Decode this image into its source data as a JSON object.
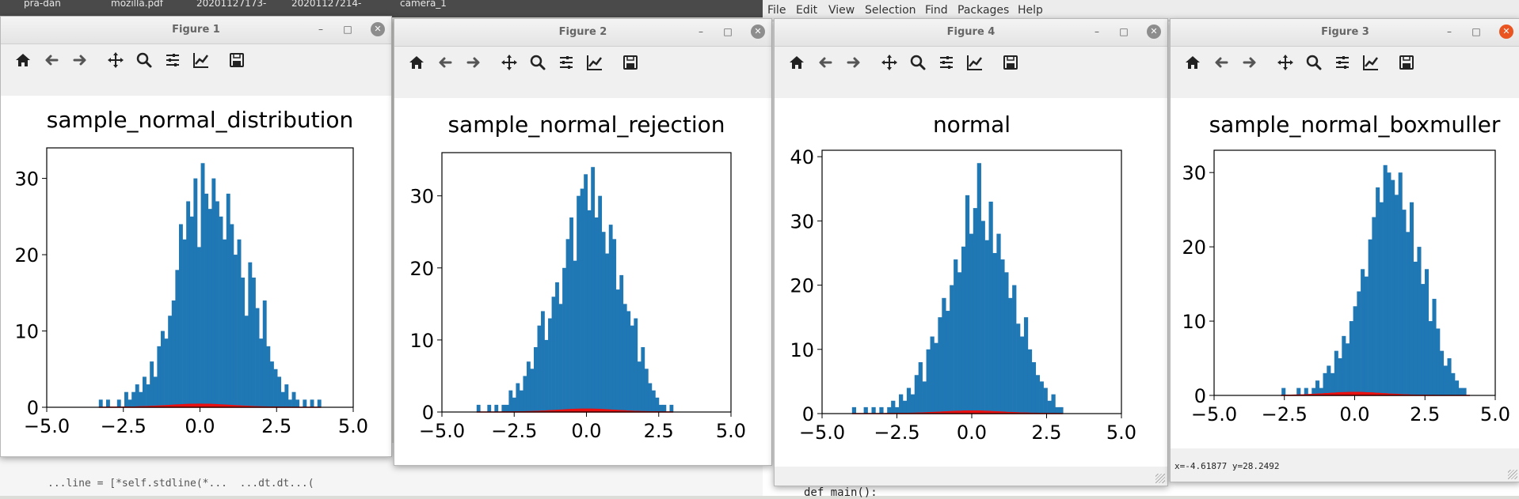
{
  "desktop": {
    "icons": [
      "pra-dan",
      "mozilla.pdf",
      "20201127173-",
      "20201127214-",
      "camera_1"
    ]
  },
  "editor": {
    "menu": [
      "File",
      "Edit",
      "View",
      "Selection",
      "Find",
      "Packages",
      "Help"
    ],
    "code_bottom": "def main():"
  },
  "terminal": {
    "text": "...line = [*self.stdline(*...  ...dt.dt...("
  },
  "colors": {
    "histogram": "#1f77b4",
    "pdf_fill": "#e81010",
    "close_active": "#e95420"
  },
  "toolbar_icons": [
    "home-icon",
    "back-arrow-icon",
    "forward-arrow-icon",
    "pan-icon",
    "zoom-icon",
    "subplots-icon",
    "edit-axis-icon",
    "save-icon"
  ],
  "windows": [
    {
      "id": "figure-1",
      "title": "Figure 1",
      "status": "",
      "chart_data": {
        "type": "bar",
        "title": "sample_normal_distribution",
        "xlim": [
          -5.0,
          5.0
        ],
        "ylim": [
          0,
          34
        ],
        "xticks": [
          "−5.0",
          "−2.5",
          "0.0",
          "2.5",
          "5.0"
        ],
        "yticks": [
          "0",
          "10",
          "20",
          "30"
        ],
        "x_range": [
          -3.3,
          3.95
        ],
        "values": [
          1,
          0,
          1,
          0,
          0,
          1,
          0,
          2,
          1,
          2,
          3,
          2,
          4,
          3,
          6,
          4,
          8,
          10,
          9,
          12,
          14,
          18,
          24,
          22,
          27,
          25,
          30,
          21,
          32,
          28,
          26,
          30,
          27,
          25,
          22,
          28,
          24,
          20,
          22,
          17,
          12,
          19,
          17,
          13,
          9,
          14,
          8,
          6,
          5,
          4,
          2,
          3,
          1,
          2,
          1,
          0,
          1,
          0,
          1,
          0,
          1
        ],
        "pdf_peak": 0.4
      }
    },
    {
      "id": "figure-2",
      "title": "Figure 2",
      "status": "",
      "chart_data": {
        "type": "bar",
        "title": "sample_normal_rejection",
        "xlim": [
          -5.0,
          5.0
        ],
        "ylim": [
          0,
          36
        ],
        "xticks": [
          "−5.0",
          "−2.5",
          "0.0",
          "2.5",
          "5.0"
        ],
        "yticks": [
          "0",
          "10",
          "20",
          "30"
        ],
        "x_range": [
          -3.8,
          3.0
        ],
        "values": [
          1,
          0,
          0,
          1,
          0,
          1,
          0,
          1,
          1,
          3,
          2,
          4,
          3,
          5,
          7,
          6,
          9,
          12,
          14,
          10,
          13,
          16,
          18,
          15,
          20,
          24,
          27,
          21,
          30,
          31,
          33,
          28,
          34,
          27,
          30,
          25,
          22,
          26,
          24,
          17,
          19,
          15,
          14,
          12,
          13,
          7,
          9,
          6,
          4,
          3,
          2,
          1,
          1,
          0,
          1
        ],
        "pdf_peak": 0.4
      }
    },
    {
      "id": "figure-4",
      "title": "Figure 4",
      "status": "",
      "chart_data": {
        "type": "bar",
        "title": "normal",
        "xlim": [
          -5.0,
          5.0
        ],
        "ylim": [
          0,
          41
        ],
        "xticks": [
          "−5.0",
          "−2.5",
          "0.0",
          "2.5",
          "5.0"
        ],
        "yticks": [
          "0",
          "10",
          "20",
          "30",
          "40"
        ],
        "x_range": [
          -4.0,
          3.05
        ],
        "values": [
          1,
          0,
          0,
          1,
          0,
          1,
          0,
          1,
          0,
          1,
          2,
          1,
          3,
          2,
          4,
          3,
          6,
          8,
          5,
          10,
          12,
          11,
          15,
          18,
          16,
          20,
          24,
          22,
          26,
          34,
          28,
          32,
          39,
          30,
          27,
          33,
          25,
          28,
          24,
          22,
          18,
          20,
          14,
          12,
          15,
          10,
          8,
          6,
          5,
          4,
          2,
          3,
          1,
          1
        ],
        "pdf_peak": 0.4
      }
    },
    {
      "id": "figure-3",
      "title": "Figure 3",
      "status": "x=-4.61877     y=28.2492",
      "chart_data": {
        "type": "bar",
        "title": "sample_normal_boxmuller",
        "xlim": [
          -5.0,
          5.0
        ],
        "ylim": [
          0,
          33
        ],
        "xticks": [
          "−5.0",
          "−2.5",
          "0.0",
          "2.5",
          "5.0"
        ],
        "yticks": [
          "0",
          "10",
          "20",
          "30"
        ],
        "x_range": [
          -2.6,
          4.1
        ],
        "values": [
          1,
          0,
          0,
          0,
          1,
          0,
          1,
          0,
          1,
          2,
          1,
          3,
          4,
          3,
          6,
          5,
          8,
          7,
          10,
          12,
          14,
          17,
          16,
          21,
          24,
          28,
          26,
          31,
          30,
          29,
          27,
          30,
          25,
          22,
          26,
          18,
          20,
          15,
          17,
          10,
          13,
          9,
          6,
          4,
          5,
          3,
          2,
          1,
          1,
          0
        ],
        "pdf_peak": 0.4
      }
    }
  ]
}
